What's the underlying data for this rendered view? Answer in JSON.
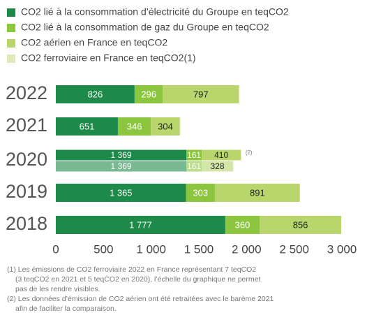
{
  "chart_data": {
    "type": "stacked_barh",
    "categories": [
      "2022",
      "2021",
      "2020",
      null,
      "2019",
      "2018"
    ],
    "series": [
      {
        "name": "CO2 lié à la consommation d’électricité du Groupe en teqCO2",
        "color": "#1e8a4a",
        "values": [
          826,
          651,
          1369,
          1369,
          1365,
          1777
        ],
        "value_labels": [
          "826",
          "651",
          "1 369",
          "1 369",
          "1 365",
          "1 777"
        ]
      },
      {
        "name": "CO2 lié à la consommation de gaz du Groupe en teqCO2",
        "color": "#8cc63f",
        "values": [
          296,
          346,
          161,
          161,
          303,
          360
        ]
      },
      {
        "name": "CO2 aérien en France en teqCO2",
        "color": "#b8d66c",
        "values": [
          797,
          304,
          410,
          328,
          891,
          856
        ]
      },
      {
        "name": "CO2 ferroviaire en France en teqCO2(1)",
        "color": "#dfeab8",
        "values": [
          7,
          3,
          5,
          5,
          null,
          null
        ]
      }
    ],
    "row_notes": [
      null,
      null,
      "(2)",
      null,
      null,
      null
    ],
    "faded_rows": [
      false,
      false,
      false,
      true,
      false,
      false
    ],
    "xlim": [
      0,
      3000
    ],
    "xticks": [
      0,
      500,
      {
        "value": 1000,
        "label": "1 000"
      },
      {
        "value": 1500,
        "label": "1 500"
      },
      {
        "value": 2000,
        "label": "2 000"
      },
      {
        "value": 2500,
        "label": "2 500"
      },
      {
        "value": 3000,
        "label": "3 000"
      }
    ],
    "grid": false,
    "footnotes": [
      "(1) Les émissions de CO2 ferroviaire 2022 en France représentant 7 teqCO2",
      "(3 teqCO2 en 2021 et 5 teqCO2 en 2020), l’échelle du graphique ne permet",
      "pas de les rendre visibles.",
      "(2) Les données d’émission de CO2 aérien ont été retraitées avec le barème 2021",
      "afin de faciliter la comparaison."
    ]
  }
}
